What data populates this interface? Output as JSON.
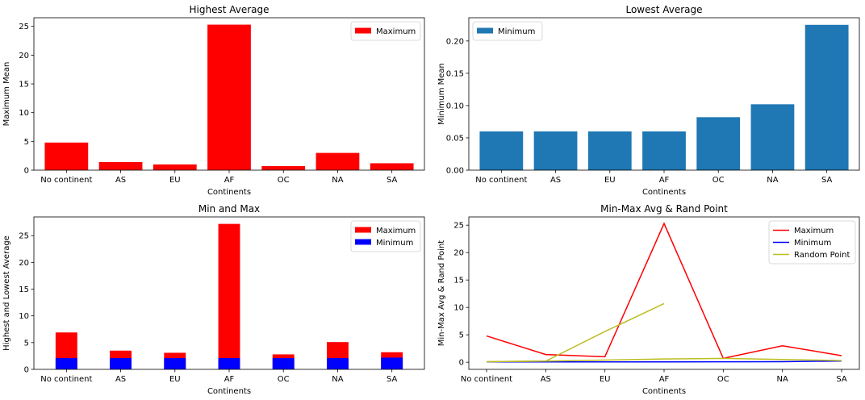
{
  "chart_data": [
    {
      "type": "bar",
      "title": "Highest Average",
      "xlabel": "Continents",
      "ylabel": "Maximum Mean",
      "categories": [
        "No continent",
        "AS",
        "EU",
        "AF",
        "OC",
        "NA",
        "SA"
      ],
      "yticks": [
        "0",
        "5",
        "10",
        "15",
        "20",
        "25"
      ],
      "ylim": [
        0,
        26.5
      ],
      "legend_position": "top-right",
      "series": [
        {
          "name": "Maximum",
          "color": "#ff0000",
          "values": [
            4.8,
            1.4,
            1.0,
            25.3,
            0.7,
            3.0,
            1.2
          ]
        }
      ]
    },
    {
      "type": "bar",
      "title": "Lowest Average",
      "xlabel": "Continents",
      "ylabel": "Minimum Mean",
      "categories": [
        "No continent",
        "AS",
        "EU",
        "AF",
        "OC",
        "NA",
        "SA"
      ],
      "yticks": [
        "0.00",
        "0.05",
        "0.10",
        "0.15",
        "0.20"
      ],
      "ylim": [
        0,
        0.236
      ],
      "legend_position": "top-left",
      "series": [
        {
          "name": "Minimum",
          "color": "#1f77b4",
          "values": [
            0.06,
            0.06,
            0.06,
            0.06,
            0.082,
            0.102,
            0.225
          ]
        }
      ]
    },
    {
      "type": "bar",
      "title": "Min and Max",
      "xlabel": "Continents",
      "ylabel": "Highest and Lowest Average",
      "categories": [
        "No continent",
        "AS",
        "EU",
        "AF",
        "OC",
        "NA",
        "SA"
      ],
      "yticks": [
        "0",
        "5",
        "10",
        "15",
        "20",
        "25"
      ],
      "ylim": [
        0,
        28.5
      ],
      "legend_position": "top-right",
      "series": [
        {
          "name": "Maximum",
          "color": "#ff0000",
          "values": [
            6.9,
            3.5,
            3.1,
            27.2,
            2.8,
            5.1,
            3.2
          ]
        },
        {
          "name": "Minimum",
          "color": "#0000ff",
          "values": [
            2.1,
            2.1,
            2.1,
            2.1,
            2.1,
            2.1,
            2.2
          ]
        }
      ]
    },
    {
      "type": "line",
      "title": "Min-Max Avg & Rand Point",
      "xlabel": "Continents",
      "ylabel": "Min-Max Avg & Rand Point",
      "categories": [
        "No continent",
        "AS",
        "EU",
        "AF",
        "OC",
        "NA",
        "SA"
      ],
      "yticks": [
        "0",
        "5",
        "10",
        "15",
        "20",
        "25"
      ],
      "ylim": [
        -1.3,
        26.5
      ],
      "legend_position": "top-right",
      "series": [
        {
          "name": "Maximum",
          "color": "#ff0000",
          "x": [
            0,
            1,
            2,
            3,
            4,
            5,
            6
          ],
          "values": [
            4.8,
            1.4,
            1.0,
            25.3,
            0.7,
            3.0,
            1.2
          ]
        },
        {
          "name": "Minimum",
          "color": "#0000ff",
          "x": [
            0,
            1,
            2,
            3,
            4,
            5,
            6
          ],
          "values": [
            0.06,
            0.06,
            0.06,
            0.06,
            0.082,
            0.102,
            0.225
          ]
        },
        {
          "name": "Random Point",
          "color": "#bcbd22",
          "x": [
            0,
            1,
            2,
            3,
            4,
            5,
            6
          ],
          "values": [
            0.1,
            0.2,
            0.4,
            0.6,
            0.7,
            0.5,
            0.3
          ]
        },
        {
          "name": "",
          "color": "#bcbd22",
          "x": [
            0,
            1,
            2,
            3
          ],
          "values": [
            0.1,
            0.2,
            5.6,
            10.7
          ]
        }
      ]
    }
  ]
}
